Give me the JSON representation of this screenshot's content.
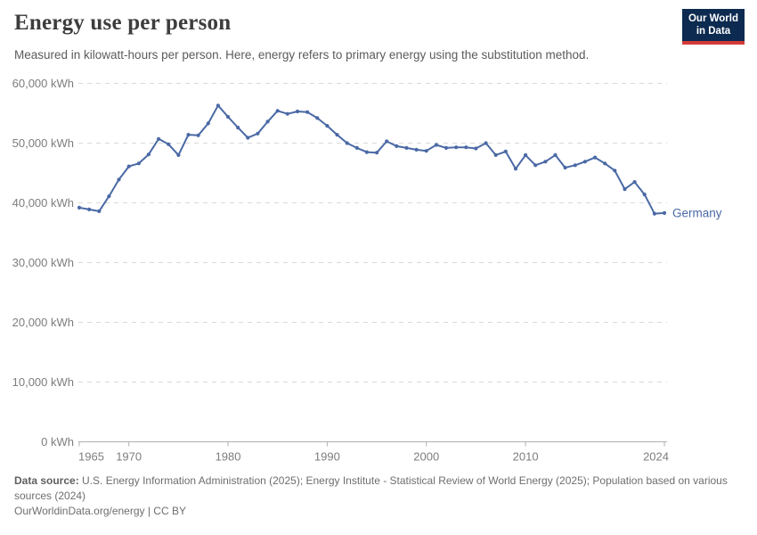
{
  "header": {
    "title": "Energy use per person",
    "subtitle": "Measured in kilowatt-hours per person. Here, energy refers to primary energy using the substitution method.",
    "logo": {
      "line1": "Our World",
      "line2": "in Data",
      "bg_color": "#0d2b50",
      "accent_color": "#d43a38"
    }
  },
  "chart_data": {
    "type": "line",
    "title": "Energy use per person",
    "subtitle": "Measured in kilowatt-hours per person. Here, energy refers to primary energy using the substitution method.",
    "xlabel": "",
    "ylabel": "kWh per person",
    "unit": "kWh",
    "xlim": [
      1965,
      2024
    ],
    "ylim": [
      0,
      60000
    ],
    "yticks": [
      0,
      10000,
      20000,
      30000,
      40000,
      50000,
      60000
    ],
    "ytick_suffix": " kWh",
    "xticks": [
      1965,
      1970,
      1980,
      1990,
      2000,
      2010,
      2024
    ],
    "grid": "horizontal-dashed",
    "legend": "end-of-line-label",
    "colors": {
      "line": "#4a69a5",
      "grid": "#d9d9d9",
      "axis": "#b0b0b0",
      "tick_label": "#7d7d7d"
    },
    "series": [
      {
        "name": "Germany",
        "x": [
          1965,
          1966,
          1967,
          1968,
          1969,
          1970,
          1971,
          1972,
          1973,
          1974,
          1975,
          1976,
          1977,
          1978,
          1979,
          1980,
          1981,
          1982,
          1983,
          1984,
          1985,
          1986,
          1987,
          1988,
          1989,
          1990,
          1991,
          1992,
          1993,
          1994,
          1995,
          1996,
          1997,
          1998,
          1999,
          2000,
          2001,
          2002,
          2003,
          2004,
          2005,
          2006,
          2007,
          2008,
          2009,
          2010,
          2011,
          2012,
          2013,
          2014,
          2015,
          2016,
          2017,
          2018,
          2019,
          2020,
          2021,
          2022,
          2023,
          2024
        ],
        "values": [
          39200,
          38900,
          38600,
          41100,
          43900,
          46100,
          46600,
          48100,
          50700,
          49800,
          48000,
          51400,
          51300,
          53300,
          56300,
          54400,
          52600,
          50900,
          51600,
          53600,
          55400,
          54900,
          55300,
          55200,
          54200,
          52900,
          51400,
          50000,
          49200,
          48500,
          48400,
          50300,
          49500,
          49200,
          48900,
          48700,
          49700,
          49200,
          49300,
          49300,
          49100,
          50000,
          48000,
          48600,
          45700,
          48000,
          46300,
          46900,
          48000,
          45900,
          46300,
          46900,
          47600,
          46600,
          45400,
          42300,
          43500,
          41400,
          38200,
          38300
        ]
      }
    ]
  },
  "footer": {
    "source_label": "Data source:",
    "source_text": " U.S. Energy Information Administration (2025); Energy Institute - Statistical Review of World Energy (2025); Population based on various sources (2024)",
    "link_line": "OurWorldinData.org/energy | CC BY"
  }
}
